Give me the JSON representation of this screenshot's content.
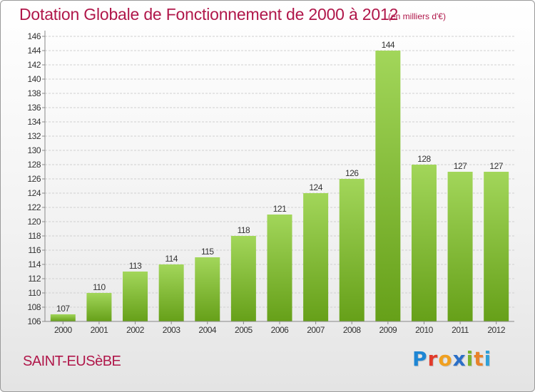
{
  "header": {
    "title": "Dotation Globale de Fonctionnement de 2000 à 2012",
    "subtitle": "(en milliers d'€)"
  },
  "footer": {
    "commune": "SAINT-EUSèBE",
    "logo_letters": [
      {
        "char": "P",
        "color": "#1e86d4"
      },
      {
        "char": "r",
        "color": "#e23a2a"
      },
      {
        "char": "o",
        "color": "#f0a020"
      },
      {
        "char": "x",
        "color": "#2b6fc7"
      },
      {
        "char": "i",
        "color": "#7ab42c"
      },
      {
        "char": "t",
        "color": "#e8822a"
      },
      {
        "char": "i",
        "color": "#2fa0d8"
      }
    ]
  },
  "chart_data": {
    "type": "bar",
    "categories": [
      "2000",
      "2001",
      "2002",
      "2003",
      "2004",
      "2005",
      "2006",
      "2007",
      "2008",
      "2009",
      "2010",
      "2011",
      "2012"
    ],
    "values": [
      107,
      110,
      113,
      114,
      115,
      118,
      121,
      124,
      126,
      144,
      128,
      127,
      127
    ],
    "data_labels": [
      "107",
      "110",
      "113",
      "114",
      "115",
      "118",
      "121",
      "124",
      "126",
      "144",
      "128",
      "127",
      "127"
    ],
    "title": "Dotation Globale de Fonctionnement de 2000 à 2012",
    "ylim": [
      106,
      146
    ],
    "yticks": [
      106,
      108,
      110,
      112,
      114,
      116,
      118,
      120,
      122,
      124,
      126,
      128,
      130,
      132,
      134,
      136,
      138,
      140,
      142,
      144,
      146
    ],
    "grid": true,
    "colors": {
      "bar_light": "#a2d65a",
      "bar_dark": "#66a019",
      "grid": "#d0d0d0",
      "axis": "#888888"
    }
  }
}
